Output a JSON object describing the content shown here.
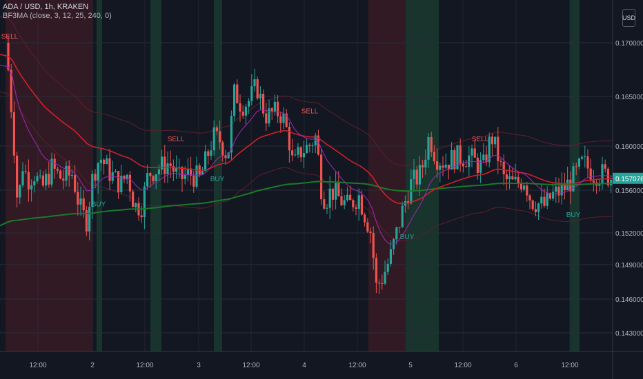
{
  "header": {
    "symbol": "ADA / USD, 1h, KRAKEN",
    "indicator": "BF3MA (close, 3, 12, 25, 240, 0)",
    "currency_button": "USD"
  },
  "colors": {
    "bg": "#131722",
    "grid": "#2a2e39",
    "up": "#26a69a",
    "down": "#ef5350",
    "ma_fast": "#9c27b0",
    "ma_mid": "#d1202a",
    "ma_slow": "#1b7a2a",
    "band": "#5d1f2c",
    "zone_green": "#1e4d36",
    "zone_red": "#4d1e26",
    "price_badge": "#26a69a"
  },
  "chart_data": {
    "type": "candlestick",
    "y_ticks": [
      "0.170000",
      "0.165000",
      "0.160000",
      "0.156000",
      "0.152000",
      "0.149000",
      "0.146000",
      "0.143000"
    ],
    "x_ticks": [
      "12:00",
      "2",
      "12:00",
      "3",
      "12:00",
      "4",
      "12:00",
      "5",
      "12:00",
      "6",
      "12:00"
    ],
    "last_price": "0.157076",
    "signals": [
      {
        "label": "SELL",
        "x": 14,
        "y": 0.1704,
        "color": "#ef5350"
      },
      {
        "label": "BUY",
        "x": 143,
        "y": 0.1545,
        "color": "#26a69a"
      },
      {
        "label": "SELL",
        "x": 255,
        "y": 0.1605,
        "color": "#ef5350"
      },
      {
        "label": "BUY",
        "x": 315,
        "y": 0.1568,
        "color": "#26a69a"
      },
      {
        "label": "SELL",
        "x": 449,
        "y": 0.1633,
        "color": "#ef5350"
      },
      {
        "label": "BUY",
        "x": 590,
        "y": 0.1514,
        "color": "#26a69a"
      },
      {
        "label": "SELL",
        "x": 696,
        "y": 0.1605,
        "color": "#ef5350"
      },
      {
        "label": "BUY",
        "x": 831,
        "y": 0.1535,
        "color": "#26a69a"
      }
    ]
  }
}
